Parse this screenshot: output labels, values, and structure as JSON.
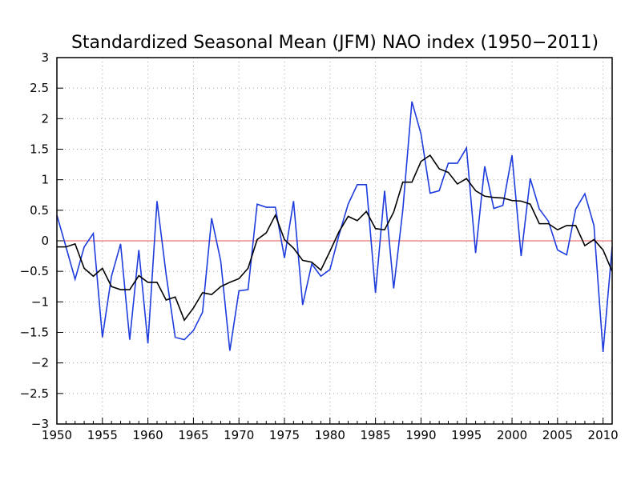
{
  "chart_data": {
    "type": "line",
    "title": "Standardized Seasonal Mean (JFM) NAO index (1950−2011)",
    "xlabel": "",
    "ylabel": "",
    "xlim": [
      1950,
      2011
    ],
    "ylim": [
      -3,
      3
    ],
    "x_ticks": [
      1950,
      1955,
      1960,
      1965,
      1970,
      1975,
      1980,
      1985,
      1990,
      1995,
      2000,
      2005,
      2010
    ],
    "y_ticks": [
      -3,
      -2.5,
      -2,
      -1.5,
      -1,
      -0.5,
      0,
      0.5,
      1,
      1.5,
      2,
      2.5,
      3
    ],
    "y_tick_labels": [
      "−3",
      "−2.5",
      "−2",
      "−1.5",
      "−1",
      "−0.5",
      "0",
      "0.5",
      "1",
      "1.5",
      "2",
      "2.5",
      "3"
    ],
    "grid": true,
    "zero_line": true,
    "colors": {
      "annual": "#1e3cdc",
      "smoothed": "#000000",
      "zero_line": "#e05050",
      "grid": "#a0a0a0"
    },
    "x": [
      1950,
      1951,
      1952,
      1953,
      1954,
      1955,
      1956,
      1957,
      1958,
      1959,
      1960,
      1961,
      1962,
      1963,
      1964,
      1965,
      1966,
      1967,
      1968,
      1969,
      1970,
      1971,
      1972,
      1973,
      1974,
      1975,
      1976,
      1977,
      1978,
      1979,
      1980,
      1981,
      1982,
      1983,
      1984,
      1985,
      1986,
      1987,
      1988,
      1989,
      1990,
      1991,
      1992,
      1993,
      1994,
      1995,
      1996,
      1997,
      1998,
      1999,
      2000,
      2001,
      2002,
      2003,
      2004,
      2005,
      2006,
      2007,
      2008,
      2009,
      2010,
      2011
    ],
    "series": [
      {
        "values": [
          0.42,
          -0.1,
          -0.63,
          -0.1,
          0.12,
          -1.58,
          -0.58,
          -0.05,
          -1.62,
          -0.15,
          -1.68,
          0.65,
          -0.55,
          -1.58,
          -1.62,
          -1.47,
          -1.17,
          0.37,
          -0.33,
          -1.8,
          -0.82,
          -0.8,
          0.6,
          0.55,
          0.55,
          -0.28,
          0.65,
          -1.05,
          -0.38,
          -0.58,
          -0.47,
          0.1,
          0.6,
          0.92,
          0.92,
          -0.85,
          0.82,
          -0.78,
          0.5,
          2.28,
          1.75,
          0.78,
          0.82,
          1.27,
          1.27,
          1.52,
          -0.2,
          1.22,
          0.53,
          0.58,
          1.4,
          -0.25,
          1.02,
          0.52,
          0.32,
          -0.15,
          -0.23,
          0.52,
          0.77,
          0.25,
          -1.82,
          -0.1
        ]
      },
      {
        "values": [
          -0.1,
          -0.1,
          -0.05,
          -0.45,
          -0.58,
          -0.45,
          -0.75,
          -0.8,
          -0.8,
          -0.57,
          -0.68,
          -0.68,
          -0.97,
          -0.92,
          -1.3,
          -1.1,
          -0.85,
          -0.88,
          -0.75,
          -0.68,
          -0.62,
          -0.45,
          0.02,
          0.13,
          0.42,
          0.02,
          -0.12,
          -0.32,
          -0.35,
          -0.48,
          -0.17,
          0.15,
          0.4,
          0.33,
          0.48,
          0.2,
          0.18,
          0.47,
          0.96,
          0.96,
          1.3,
          1.4,
          1.18,
          1.12,
          0.93,
          1.02,
          0.82,
          0.73,
          0.71,
          0.7,
          0.66,
          0.65,
          0.6,
          0.28,
          0.28,
          0.18,
          0.25,
          0.25,
          -0.08,
          0.02,
          -0.15,
          -0.5
        ]
      }
    ]
  }
}
